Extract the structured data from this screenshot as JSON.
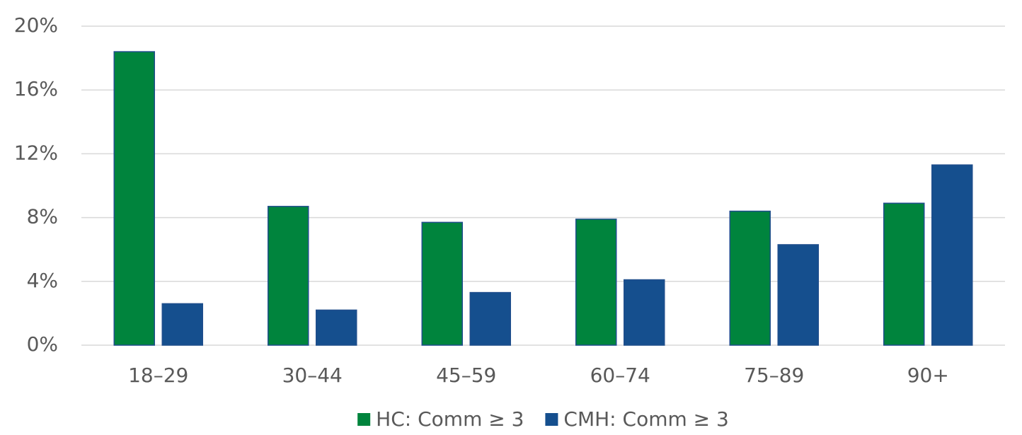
{
  "chart_data": {
    "type": "bar",
    "categories": [
      "18–29",
      "30–44",
      "45–59",
      "60–74",
      "75–89",
      "90+"
    ],
    "series": [
      {
        "name": "HC: Comm ≥ 3",
        "color": "#00843d",
        "values": [
          18.4,
          8.7,
          7.7,
          7.9,
          8.4,
          8.9
        ]
      },
      {
        "name": "CMH: Comm ≥ 3",
        "color": "#154f8e",
        "values": [
          2.6,
          2.2,
          3.3,
          4.1,
          6.3,
          11.3
        ]
      }
    ],
    "ylim": [
      0,
      20
    ],
    "yticks": [
      {
        "value": 0,
        "label": "0%"
      },
      {
        "value": 4,
        "label": "4%"
      },
      {
        "value": 8,
        "label": "8%"
      },
      {
        "value": 12,
        "label": "12%"
      },
      {
        "value": 16,
        "label": "16%"
      },
      {
        "value": 20,
        "label": "20%"
      }
    ],
    "grid": true,
    "legend": "bottom"
  }
}
